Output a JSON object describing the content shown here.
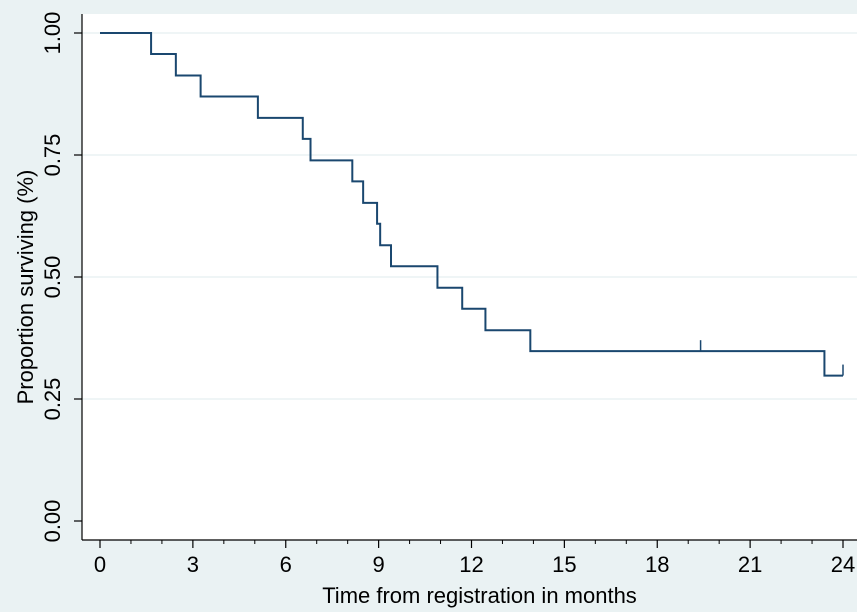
{
  "chart_data": {
    "type": "line",
    "subtype": "kaplan-meier-step",
    "title": "",
    "xlabel": "Time from registration in months",
    "ylabel": "Proportion surviving (%)",
    "xlim": [
      0,
      24
    ],
    "ylim": [
      0,
      1
    ],
    "x_ticks": [
      0,
      3,
      6,
      9,
      12,
      15,
      18,
      21,
      24
    ],
    "x_tick_labels": [
      "0",
      "3",
      "6",
      "9",
      "12",
      "15",
      "18",
      "21",
      "24"
    ],
    "x_minor_ticks": [
      1,
      2,
      4,
      5,
      7,
      8,
      10,
      11,
      13,
      14,
      16,
      17,
      19,
      20,
      22,
      23
    ],
    "y_ticks": [
      0,
      0.25,
      0.5,
      0.75,
      1
    ],
    "y_tick_labels": [
      "0.00",
      "0.25",
      "0.50",
      "0.75",
      "1.00"
    ],
    "grid": "horizontal",
    "legend": "none",
    "colors": {
      "background": "#eaf2f3",
      "plot_background": "#ffffff",
      "grid": "#eaf2f3",
      "line": "#1a476f",
      "axis": "#000000"
    },
    "series": [
      {
        "steps": [
          {
            "x": 0,
            "y": 1.0
          },
          {
            "x": 1.65,
            "y": 0.957
          },
          {
            "x": 2.45,
            "y": 0.913
          },
          {
            "x": 3.25,
            "y": 0.87
          },
          {
            "x": 5.1,
            "y": 0.826
          },
          {
            "x": 6.55,
            "y": 0.783
          },
          {
            "x": 6.8,
            "y": 0.739
          },
          {
            "x": 8.15,
            "y": 0.696
          },
          {
            "x": 8.5,
            "y": 0.652
          },
          {
            "x": 8.95,
            "y": 0.609
          },
          {
            "x": 9.05,
            "y": 0.565
          },
          {
            "x": 9.4,
            "y": 0.522
          },
          {
            "x": 10.9,
            "y": 0.478
          },
          {
            "x": 11.7,
            "y": 0.435
          },
          {
            "x": 12.45,
            "y": 0.391
          },
          {
            "x": 13.9,
            "y": 0.348
          },
          {
            "x": 23.4,
            "y": 0.298
          }
        ],
        "end_x": 24,
        "censored": [
          {
            "x": 19.4,
            "y": 0.348
          },
          {
            "x": 24,
            "y": 0.298
          }
        ]
      }
    ]
  }
}
